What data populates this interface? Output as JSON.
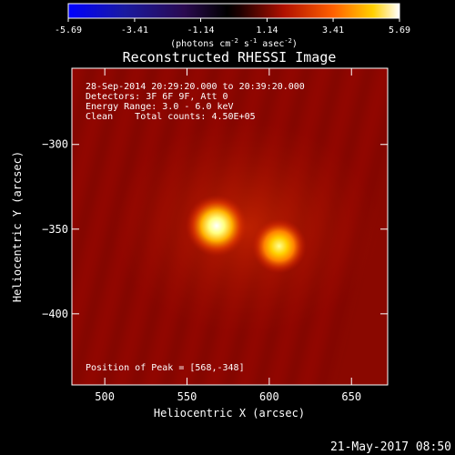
{
  "chart_data": {
    "type": "heatmap",
    "title": "Reconstructed RHESSI Image",
    "xlabel": "Heliocentric X (arcsec)",
    "ylabel": "Heliocentric Y (arcsec)",
    "xlim": [
      480,
      672
    ],
    "ylim": [
      -442,
      -255
    ],
    "x_ticks": [
      500,
      550,
      600,
      650
    ],
    "y_ticks": [
      -300,
      -350,
      -400
    ],
    "colorbar": {
      "range": [
        -5.69,
        5.69
      ],
      "ticks": [
        "-5.69",
        "-3.41",
        "-1.14",
        "1.14",
        "3.41",
        "5.69"
      ],
      "label_prefix": "(photons cm",
      "label_exp1": "-2",
      "label_mid": " s",
      "label_exp2": "-1",
      "label_mid2": " asec",
      "label_exp3": "-2",
      "label_suffix": ")"
    },
    "info": {
      "time_range": "28-Sep-2014 20:29:20.000 to 20:39:20.000",
      "detectors": "Detectors: 3F 6F 9F, Att 0",
      "energy": "Energy Range: 3.0 - 6.0 keV",
      "method": "Clean    Total counts: 4.50E+05"
    },
    "peak_text": "Position of Peak = [568,-348]",
    "sources": [
      {
        "x": 568,
        "y": -348,
        "peak": 5.69
      },
      {
        "x": 606,
        "y": -360,
        "peak": 4.6
      }
    ],
    "background_level": 1.6,
    "colors": {
      "map_base": "#7a0000",
      "map_mid": "#b01000",
      "map_hot": "#ffff60",
      "frame": "#ffffff"
    }
  },
  "timestamp": "21-May-2017 08:50"
}
